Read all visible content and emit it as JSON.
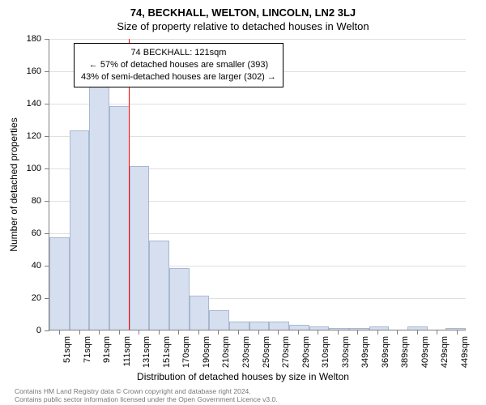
{
  "title_main": "74, BECKHALL, WELTON, LINCOLN, LN2 3LJ",
  "title_sub": "Size of property relative to detached houses in Welton",
  "y_axis_title": "Number of detached properties",
  "x_axis_title": "Distribution of detached houses by size in Welton",
  "chart": {
    "type": "histogram",
    "ylim_max": 180,
    "ytick_step": 20,
    "bar_fill": "#d6dff0",
    "bar_border": "#a8b8d0",
    "grid_color": "#e0e0e0",
    "axis_color": "#808080",
    "background_color": "#ffffff",
    "categories": [
      "51sqm",
      "71sqm",
      "91sqm",
      "111sqm",
      "131sqm",
      "151sqm",
      "170sqm",
      "190sqm",
      "210sqm",
      "230sqm",
      "250sqm",
      "270sqm",
      "290sqm",
      "310sqm",
      "330sqm",
      "349sqm",
      "369sqm",
      "389sqm",
      "409sqm",
      "429sqm",
      "449sqm"
    ],
    "values": [
      57,
      123,
      157,
      138,
      101,
      55,
      38,
      21,
      12,
      5,
      5,
      5,
      3,
      2,
      1,
      1,
      2,
      0,
      2,
      0,
      1
    ],
    "marker_x_value": 121,
    "x_numeric_min": 51,
    "x_numeric_step": 20,
    "marker_color": "#ff0000",
    "annotation_lines": [
      "74 BECKHALL: 121sqm",
      "← 57% of detached houses are smaller (393)",
      "43% of semi-detached houses are larger (302) →"
    ]
  },
  "footer_line1": "Contains HM Land Registry data © Crown copyright and database right 2024.",
  "footer_line2": "Contains public sector information licensed under the Open Government Licence v3.0."
}
